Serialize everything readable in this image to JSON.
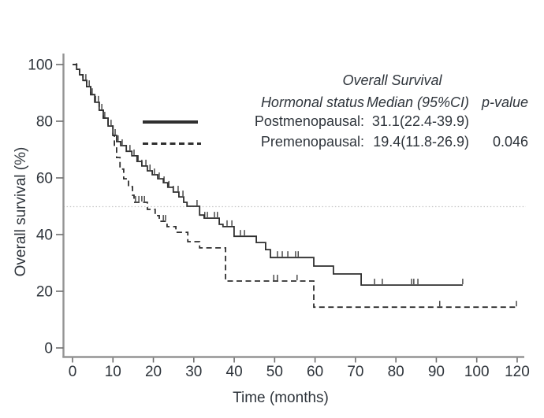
{
  "legend": {
    "header_top": "Overall Survival",
    "col_status": "Hormonal status",
    "col_median": "Median (95%CI)",
    "col_p": "p-value",
    "rows": [
      {
        "label": "Postmenopausal:",
        "median": "31.1(22.4-39.9)",
        "p": ""
      },
      {
        "label": "Premenopausal:",
        "median": "19.4(11.8-26.9)",
        "p": "0.046"
      }
    ]
  },
  "chart_data": {
    "type": "line",
    "subtype": "kaplan-meier-step",
    "title": "",
    "xlabel": "Time (months)",
    "ylabel": "Overall survival (%)",
    "x_axis": {
      "tick_labels": [
        "0",
        "10",
        "20",
        "30",
        "40",
        "50",
        "60",
        "70",
        "80",
        "90",
        "100",
        "120"
      ],
      "range_months": [
        0,
        120
      ]
    },
    "y_axis": {
      "ticks": [
        0,
        20,
        40,
        60,
        80,
        100
      ],
      "range": [
        0,
        100
      ]
    },
    "reference_line": {
      "y": 50,
      "style": "dotted"
    },
    "p_value": "0.046",
    "series": [
      {
        "name": "Postmenopausal",
        "line_style": "solid",
        "median_months": 31.1,
        "ci_95": "22.4-39.9",
        "points": [
          [
            0,
            100
          ],
          [
            1.1,
            98.3
          ],
          [
            1.9,
            96.4
          ],
          [
            2.8,
            94.4
          ],
          [
            3.8,
            92.2
          ],
          [
            4.9,
            89.4
          ],
          [
            6,
            86.7
          ],
          [
            7.2,
            83.9
          ],
          [
            8.3,
            81.1
          ],
          [
            9.6,
            78.3
          ],
          [
            10.9,
            75
          ],
          [
            11.9,
            72.8
          ],
          [
            13,
            71.4
          ],
          [
            14.5,
            69.4
          ],
          [
            16,
            67.8
          ],
          [
            17.4,
            65.8
          ],
          [
            18.7,
            64.2
          ],
          [
            20.2,
            62.5
          ],
          [
            21.5,
            61.1
          ],
          [
            23,
            59.7
          ],
          [
            24.5,
            58.3
          ],
          [
            25.7,
            56.7
          ],
          [
            27.2,
            55
          ],
          [
            28.7,
            53.3
          ],
          [
            30,
            51.4
          ],
          [
            30.9,
            50
          ],
          [
            34.3,
            46.9
          ],
          [
            35.5,
            45.8
          ],
          [
            39.6,
            43.6
          ],
          [
            40.6,
            42.8
          ],
          [
            43.6,
            39.4
          ],
          [
            49.6,
            37.2
          ],
          [
            52.1,
            34.7
          ],
          [
            53.4,
            31.9
          ],
          [
            65.1,
            28.9
          ],
          [
            70.4,
            26.1
          ],
          [
            77.9,
            22.2
          ],
          [
            105.3,
            22.2
          ]
        ],
        "censor_times": [
          1.1,
          1.9,
          2.8,
          3.6,
          4.5,
          5.3,
          6.2,
          7,
          7.9,
          8.7,
          9.6,
          10.4,
          11.5,
          12.3,
          13.4,
          14.5,
          15.5,
          16.6,
          17.7,
          18.7,
          19.8,
          20.9,
          22.1,
          23.4,
          24.7,
          26,
          27.2,
          28.5,
          29.8,
          33.6,
          35.7,
          36.4,
          38.3,
          39.1,
          41.7,
          43,
          45.3,
          46.4,
          55.3,
          56.6,
          58.1,
          60.2,
          60.9,
          81.5,
          83.6,
          91.5,
          92.1,
          93.2,
          105.3
        ]
      },
      {
        "name": "Premenopausal",
        "line_style": "dashed",
        "median_months": 19.4,
        "ci_95": "11.8-26.9",
        "points": [
          [
            0,
            100
          ],
          [
            1.1,
            98.3
          ],
          [
            1.9,
            96.4
          ],
          [
            2.8,
            94.4
          ],
          [
            3.8,
            92.2
          ],
          [
            4.9,
            89.4
          ],
          [
            6,
            86.7
          ],
          [
            7.2,
            83.9
          ],
          [
            8.3,
            81.1
          ],
          [
            9.6,
            78.3
          ],
          [
            10.9,
            75
          ],
          [
            11.3,
            70.8
          ],
          [
            11.9,
            67.2
          ],
          [
            12.8,
            63.1
          ],
          [
            13.8,
            59.7
          ],
          [
            15.1,
            56.9
          ],
          [
            16.2,
            53.9
          ],
          [
            16.6,
            51.4
          ],
          [
            20.2,
            48.9
          ],
          [
            22.3,
            46.7
          ],
          [
            23.4,
            44.7
          ],
          [
            25.5,
            42.8
          ],
          [
            27.9,
            40.8
          ],
          [
            31.1,
            37.5
          ],
          [
            34.3,
            35.3
          ],
          [
            41.3,
            23.6
          ],
          [
            65.1,
            14.4
          ],
          [
            119.8,
            14.4
          ]
        ],
        "censor_times": [
          17,
          17.9,
          18.7,
          19.4,
          24.5,
          25.1,
          54.3,
          55.3,
          60.6,
          99.1,
          119.8
        ]
      }
    ],
    "colors": {
      "curve": "#2f2f2f",
      "axis": "#949494",
      "tick": "#6e6e6e",
      "text": "#2e343b",
      "reference": "#c6c6c6",
      "background": "#ffffff"
    }
  }
}
